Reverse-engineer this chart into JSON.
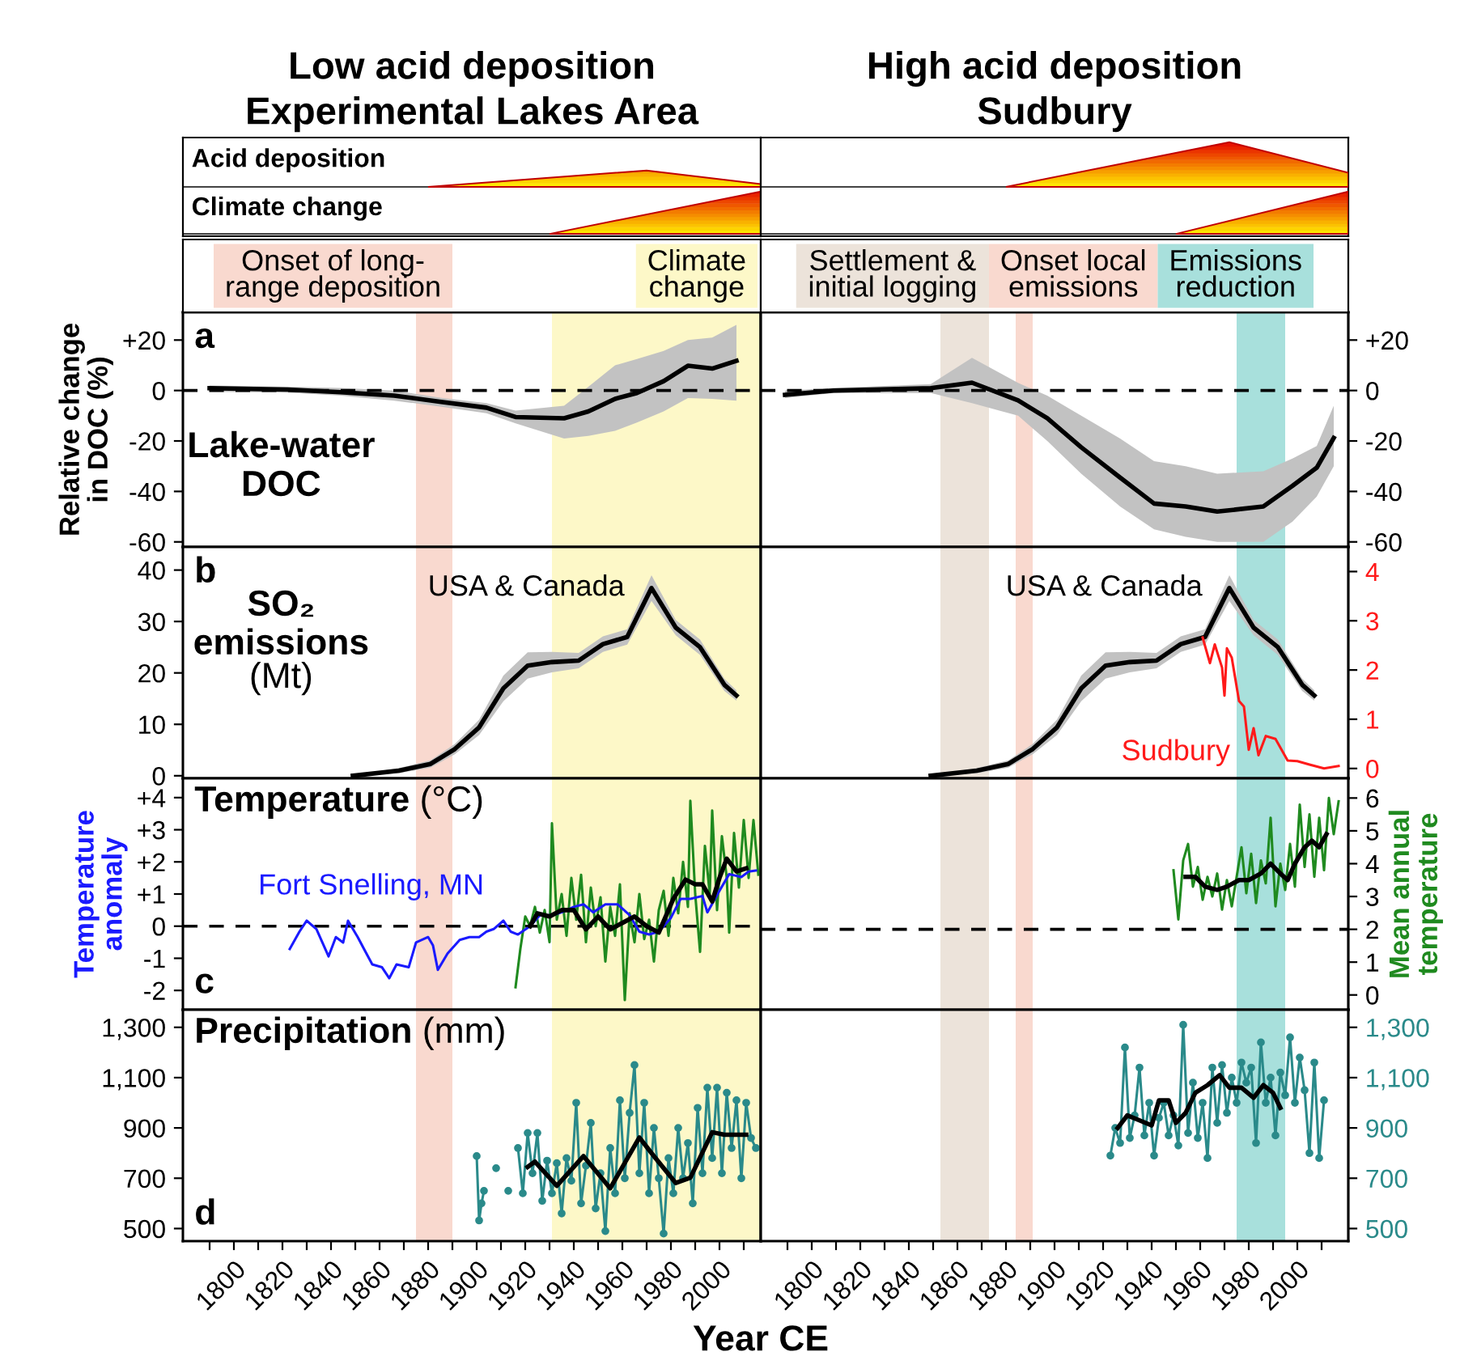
{
  "chart_data": [
    {
      "type": "other",
      "title": "Low acid deposition\nExperimental Lakes Area",
      "annotations": [
        "Acid deposition",
        "Climate change"
      ]
    },
    {
      "type": "other",
      "title": "High acid deposition\nSudbury"
    },
    {
      "type": "line",
      "ylabel": "Relative change\nin DOC (%)",
      "annotations": [
        "a",
        "Lake-water\nDOC"
      ],
      "tick_labels": "y",
      "xlim": [
        1779,
        2017
      ],
      "xticks": [
        {
          "value": 1790,
          "label": null
        },
        1800,
        {
          "value": 1810,
          "label": null
        },
        1820,
        {
          "value": 1830,
          "label": null
        },
        1840,
        {
          "value": 1850,
          "label": null
        },
        1860,
        {
          "value": 1870,
          "label": null
        },
        1880,
        {
          "value": 1890,
          "label": null
        },
        1900,
        {
          "value": 1910,
          "label": null
        },
        1920,
        {
          "value": 1930,
          "label": null
        },
        1940,
        {
          "value": 1950,
          "label": null
        },
        1960,
        {
          "value": 1970,
          "label": null
        },
        1980,
        {
          "value": 1990,
          "label": null
        },
        2000,
        {
          "value": 2010,
          "label": null
        }
      ],
      "ylim": [
        -62,
        31
      ],
      "yticks": [
        {
          "value": 20,
          "label": "+20"
        },
        0,
        -20,
        -40,
        -60
      ],
      "bands": [
        {
          "axis": "x",
          "from": 1875,
          "to": 1890,
          "color": "#f9d9cf",
          "label": "Onset of long-\nrange deposition"
        },
        {
          "axis": "x",
          "from": 1931,
          "to": 2017,
          "color": "#fdf8c8",
          "label": "Climate\nchange"
        }
      ],
      "ref_lines": [
        {
          "axis": "y",
          "value": 0,
          "color": "#000000",
          "line_style": "dashed"
        }
      ],
      "series": [
        {
          "color": "#000000",
          "x": [
            1790,
            1822,
            1844,
            1866,
            1886,
            1904,
            1916,
            1936,
            1946,
            1957,
            1966,
            1977,
            1987,
            1997,
            2007
          ],
          "values": [
            0.9,
            0.4,
            -0.7,
            -2,
            -4.6,
            -6.8,
            -10.5,
            -11,
            -8.3,
            -3.3,
            -1,
            3.7,
            9.8,
            8.7,
            11.8
          ],
          "lower": [
            -0.5,
            -0.8,
            -2,
            -4,
            -6.5,
            -9,
            -13,
            -19,
            -18,
            -16,
            -12.7,
            -8.3,
            -3,
            -3.3,
            -4
          ],
          "upper": [
            2,
            1.5,
            1,
            0,
            -3,
            -5,
            -8,
            -6,
            1.5,
            10,
            12.5,
            15.7,
            20,
            21,
            26
          ]
        }
      ]
    },
    {
      "type": "line",
      "tick_labels": false,
      "xlim": [
        1779,
        2021
      ],
      "xticks": [
        {
          "value": 1790,
          "label": null
        },
        1800,
        {
          "value": 1810,
          "label": null
        },
        1820,
        {
          "value": 1830,
          "label": null
        },
        1840,
        {
          "value": 1850,
          "label": null
        },
        1860,
        {
          "value": 1870,
          "label": null
        },
        1880,
        {
          "value": 1890,
          "label": null
        },
        1900,
        {
          "value": 1910,
          "label": null
        },
        1920,
        {
          "value": 1930,
          "label": null
        },
        1940,
        {
          "value": 1950,
          "label": null
        },
        1960,
        {
          "value": 1970,
          "label": null
        },
        1980,
        {
          "value": 1990,
          "label": null
        },
        2000,
        {
          "value": 2010,
          "label": null
        }
      ],
      "y2lim": [
        -62,
        31
      ],
      "y2ticks": [
        {
          "value": 20,
          "label": "+20"
        },
        {
          "value": 0,
          "label": "0"
        },
        {
          "value": -20,
          "label": "-20"
        },
        {
          "value": -40,
          "label": "-40"
        },
        {
          "value": -60,
          "label": "-60"
        }
      ],
      "bands": [
        {
          "axis": "x",
          "from": 1853,
          "to": 1873,
          "color": "#ece3da",
          "label": "Settlement &\ninitial logging"
        },
        {
          "axis": "x",
          "from": 1884,
          "to": 1891,
          "color": "#f9d9cf",
          "label": "Onset local\nemissions"
        },
        {
          "axis": "x",
          "from": 1975,
          "to": 1995,
          "color": "#a8e0dc",
          "label": "Emissions\nreduction"
        }
      ],
      "ref_lines": [
        {
          "axis": "y2",
          "value": 0,
          "color": "#000000",
          "line_style": "dashed"
        }
      ],
      "series": [
        {
          "color": "#000000",
          "axis": "y2",
          "x": [
            1789,
            1809,
            1849,
            1866,
            1885,
            1897,
            1911,
            1927,
            1941,
            1954,
            1967,
            1986,
            1998,
            2008,
            2015
          ],
          "values": [
            -1.7,
            0,
            0.9,
            3.1,
            -3.9,
            -11,
            -22.5,
            -34.5,
            -44.8,
            -46,
            -48,
            -46,
            -37.8,
            -30.6,
            -18.8
          ],
          "lower": [
            -3,
            -1,
            -1,
            -5,
            -10,
            -20,
            -33,
            -46,
            -55,
            -58,
            -60,
            -60,
            -52,
            -42,
            -30
          ],
          "upper": [
            0,
            1,
            2.5,
            13,
            3,
            -2,
            -10,
            -19,
            -28,
            -30,
            -33,
            -32,
            -27,
            -22,
            -6
          ]
        }
      ]
    },
    {
      "type": "line",
      "annotations": [
        "b",
        "SO₂\nemissions\n(Mt)"
      ],
      "tick_labels": "y",
      "xlim": [
        1779,
        2017
      ],
      "xticks": [
        {
          "value": 1790,
          "label": null
        },
        1800,
        {
          "value": 1810,
          "label": null
        },
        1820,
        {
          "value": 1830,
          "label": null
        },
        1840,
        {
          "value": 1850,
          "label": null
        },
        1860,
        {
          "value": 1870,
          "label": null
        },
        1880,
        {
          "value": 1890,
          "label": null
        },
        1900,
        {
          "value": 1910,
          "label": null
        },
        1920,
        {
          "value": 1930,
          "label": null
        },
        1940,
        {
          "value": 1950,
          "label": null
        },
        1960,
        {
          "value": 1970,
          "label": null
        },
        1980,
        {
          "value": 1990,
          "label": null
        },
        2000,
        {
          "value": 2010,
          "label": null
        }
      ],
      "ylim": [
        -0.5,
        44.5
      ],
      "yticks": [
        0,
        10,
        20,
        30,
        40
      ],
      "bands": [
        {
          "axis": "x",
          "from": 1875,
          "to": 1890,
          "color": "#f9d9cf"
        },
        {
          "axis": "x",
          "from": 1931,
          "to": 2017,
          "color": "#fdf8c8"
        }
      ],
      "series": [
        {
          "name": "USA & Canada",
          "color": "#000000",
          "x": [
            1849,
            1868,
            1881,
            1891,
            1901,
            1911,
            1921,
            1931,
            1942,
            1952,
            1962,
            1972,
            1982,
            1992,
            2002,
            2007
          ],
          "values": [
            0,
            1,
            2.3,
            5.2,
            9.4,
            17,
            21.4,
            22.1,
            22.4,
            25.6,
            27,
            36.5,
            28.8,
            25,
            17.7,
            15.6
          ],
          "lower": [
            0,
            0.5,
            1.6,
            4.2,
            7.9,
            14.5,
            18.9,
            20.1,
            20.9,
            24.1,
            25.5,
            34,
            27.3,
            23.5,
            16.5,
            14.6
          ],
          "upper": [
            0,
            1.5,
            3,
            6.2,
            10.9,
            19.5,
            24,
            24.1,
            23.9,
            27.1,
            28.5,
            39,
            30.3,
            26.5,
            18.9,
            16.6
          ]
        }
      ]
    },
    {
      "type": "line",
      "tick_labels": false,
      "xlim": [
        1779,
        2021
      ],
      "xticks": [
        {
          "value": 1790,
          "label": null
        },
        1800,
        {
          "value": 1810,
          "label": null
        },
        1820,
        {
          "value": 1830,
          "label": null
        },
        1840,
        {
          "value": 1850,
          "label": null
        },
        1860,
        {
          "value": 1870,
          "label": null
        },
        1880,
        {
          "value": 1890,
          "label": null
        },
        1900,
        {
          "value": 1910,
          "label": null
        },
        1920,
        {
          "value": 1930,
          "label": null
        },
        1940,
        {
          "value": 1950,
          "label": null
        },
        1960,
        {
          "value": 1970,
          "label": null
        },
        1980,
        {
          "value": 1990,
          "label": null
        },
        2000,
        {
          "value": 2010,
          "label": null
        }
      ],
      "ylim": [
        -0.5,
        44.5
      ],
      "y2lim": [
        -0.2,
        4.5
      ],
      "y2ticks": [
        {
          "value": 0,
          "label": "0"
        },
        {
          "value": 1,
          "label": "1"
        },
        {
          "value": 2,
          "label": "2"
        },
        {
          "value": 3,
          "label": "3"
        },
        {
          "value": 4,
          "label": "4"
        }
      ],
      "bands": [
        {
          "axis": "x",
          "from": 1853,
          "to": 1873,
          "color": "#ece3da"
        },
        {
          "axis": "x",
          "from": 1884,
          "to": 1891,
          "color": "#f9d9cf"
        },
        {
          "axis": "x",
          "from": 1975,
          "to": 1995,
          "color": "#a8e0dc"
        }
      ],
      "series": [
        {
          "name": "USA & Canada",
          "color": "#000000",
          "x": [
            1849,
            1868,
            1881,
            1891,
            1901,
            1911,
            1921,
            1931,
            1942,
            1952,
            1962,
            1972,
            1982,
            1992,
            2002,
            2007
          ],
          "values": [
            0,
            1,
            2.3,
            5.2,
            9.4,
            17,
            21.4,
            22.1,
            22.4,
            25.6,
            27,
            36.5,
            28.8,
            25,
            17.7,
            15.6
          ],
          "lower": [
            0,
            0.5,
            1.6,
            4.2,
            7.9,
            14.5,
            18.9,
            20.1,
            20.9,
            24.1,
            25.5,
            34,
            27.3,
            23.5,
            16.5,
            14.6
          ],
          "upper": [
            0,
            1.5,
            3,
            6.2,
            10.9,
            19.5,
            24,
            24.1,
            23.9,
            27.1,
            28.5,
            39,
            30.3,
            26.5,
            18.9,
            16.6
          ]
        },
        {
          "name": "Sudbury",
          "color": "#ff1a1a",
          "axis": "y2",
          "x": [
            1961,
            1964,
            1966,
            1969,
            1970,
            1971,
            1973,
            1976,
            1978,
            1980,
            1982,
            1984,
            1987,
            1991,
            1996,
            2000,
            2005,
            2011,
            2017
          ],
          "values": [
            2.66,
            2.14,
            2.52,
            2.05,
            1.48,
            2.44,
            2.25,
            1.37,
            1.26,
            0.38,
            0.82,
            0.27,
            0.66,
            0.6,
            0.16,
            0.15,
            0.08,
            0,
            0.05
          ]
        }
      ]
    },
    {
      "type": "line",
      "ylabel": "Temperature\nanomaly",
      "annotations": [
        "c",
        "Temperature (°C)"
      ],
      "tick_labels": "y",
      "xlim": [
        1779,
        2017
      ],
      "xticks": [
        {
          "value": 1790,
          "label": null
        },
        1800,
        {
          "value": 1810,
          "label": null
        },
        1820,
        {
          "value": 1830,
          "label": null
        },
        1840,
        {
          "value": 1850,
          "label": null
        },
        1860,
        {
          "value": 1870,
          "label": null
        },
        1880,
        {
          "value": 1890,
          "label": null
        },
        1900,
        {
          "value": 1910,
          "label": null
        },
        1920,
        {
          "value": 1930,
          "label": null
        },
        1940,
        {
          "value": 1950,
          "label": null
        },
        1960,
        {
          "value": 1970,
          "label": null
        },
        1980,
        {
          "value": 1990,
          "label": null
        },
        2000,
        {
          "value": 2010,
          "label": null
        }
      ],
      "ylim": [
        -2.6,
        4.6
      ],
      "yticks": [
        {
          "value": 4,
          "label": "+4"
        },
        {
          "value": 3,
          "label": "+3"
        },
        {
          "value": 2,
          "label": "+2"
        },
        {
          "value": 1,
          "label": "+1"
        },
        0,
        -1,
        -2
      ],
      "bands": [
        {
          "axis": "x",
          "from": 1875,
          "to": 1890,
          "color": "#f9d9cf"
        },
        {
          "axis": "x",
          "from": 1931,
          "to": 2017,
          "color": "#fdf8c8"
        }
      ],
      "ref_lines": [
        {
          "axis": "y",
          "value": 0,
          "color": "#000000",
          "line_style": "dashed"
        }
      ],
      "series": [
        {
          "color": "#1f8a1f",
          "x": [
            1916,
            1918,
            1920,
            1922,
            1924,
            1926,
            1928,
            1930,
            1931,
            1933,
            1935,
            1937,
            1939,
            1941,
            1943,
            1945,
            1947,
            1949,
            1951,
            1953,
            1955,
            1957,
            1959,
            1961,
            1963,
            1965,
            1967,
            1969,
            1971,
            1973,
            1975,
            1977,
            1979,
            1981,
            1983,
            1985,
            1987,
            1988,
            1990,
            1992,
            1994,
            1996,
            1997,
            1999,
            2001,
            2003,
            2004,
            2006,
            2008,
            2010,
            2012,
            2014,
            2016
          ],
          "values": [
            -1.9,
            -0.7,
            0.3,
            0,
            0.6,
            -0.2,
            0.5,
            -0.5,
            3.2,
            0.2,
            1,
            -0.3,
            1.5,
            0.2,
            1.6,
            -0.5,
            1.2,
            0,
            0.9,
            -1.1,
            0.6,
            -0.3,
            1.3,
            -2.3,
            0.4,
            -0.5,
            1,
            -0.4,
            0.2,
            -1.1,
            0.5,
            1.1,
            -0.3,
            1.5,
            0.4,
            2,
            0.6,
            3.9,
            1,
            -0.8,
            2.5,
            1,
            3.6,
            0.5,
            2.8,
            1.5,
            -0.2,
            2.9,
            1.2,
            3.3,
            1.5,
            3.3,
            1.6
          ]
        },
        {
          "name": "Fort Snelling, MN",
          "color": "#1a1aff",
          "x": [
            1823,
            1827,
            1830,
            1834,
            1839,
            1842,
            1845,
            1847,
            1851,
            1854,
            1857,
            1861,
            1864,
            1867,
            1872,
            1875,
            1880,
            1882,
            1884,
            1888,
            1893,
            1897,
            1901,
            1904,
            1907,
            1911,
            1914,
            1917,
            1922,
            1926,
            1931,
            1935,
            1940,
            1944,
            1948,
            1953,
            1958,
            1963,
            1967,
            1971,
            1975,
            1980,
            1984,
            1988,
            1993,
            1995,
            2000,
            2004,
            2009,
            2012,
            2015
          ],
          "values": [
            -0.71,
            -0.17,
            0.17,
            -0.09,
            -0.94,
            -0.34,
            -0.51,
            0.17,
            -0.34,
            -0.77,
            -1.19,
            -1.28,
            -1.62,
            -1.19,
            -1.28,
            -0.51,
            -0.34,
            -0.6,
            -1.36,
            -0.85,
            -0.43,
            -0.34,
            -0.34,
            -0.17,
            -0.09,
            0.17,
            -0.17,
            -0.26,
            0,
            0.34,
            0.34,
            0.43,
            0.6,
            0.68,
            0.43,
            0.68,
            0.68,
            0.34,
            -0.17,
            -0.26,
            -0.17,
            0.26,
            0.85,
            0.85,
            0.94,
            0.43,
            1.1,
            1.62,
            1.53,
            1.7,
            1.73
          ]
        },
        {
          "color": "#000000",
          "x": [
            1922,
            1925,
            1930,
            1935,
            1940,
            1945,
            1950,
            1955,
            1960,
            1965,
            1970,
            1975,
            1981,
            1986,
            1990,
            1993,
            1997,
            2000,
            2003,
            2007,
            2011
          ],
          "values": [
            0,
            0.4,
            0.3,
            0.5,
            0.5,
            -0.1,
            0.3,
            -0.1,
            0.1,
            0.3,
            0,
            -0.2,
            0.85,
            1.45,
            1.3,
            1.3,
            0.77,
            1.5,
            2.1,
            1.7,
            1.8
          ]
        }
      ]
    },
    {
      "type": "line",
      "y2label": "Mean annual\ntemperature",
      "tick_labels": false,
      "xlim": [
        1779,
        2021
      ],
      "xticks": [
        {
          "value": 1790,
          "label": null
        },
        1800,
        {
          "value": 1810,
          "label": null
        },
        1820,
        {
          "value": 1830,
          "label": null
        },
        1840,
        {
          "value": 1850,
          "label": null
        },
        1860,
        {
          "value": 1870,
          "label": null
        },
        1880,
        {
          "value": 1890,
          "label": null
        },
        1900,
        {
          "value": 1910,
          "label": null
        },
        1920,
        {
          "value": 1930,
          "label": null
        },
        1940,
        {
          "value": 1950,
          "label": null
        },
        1960,
        {
          "value": 1970,
          "label": null
        },
        1980,
        {
          "value": 1990,
          "label": null
        },
        2000,
        {
          "value": 2010,
          "label": null
        }
      ],
      "y2lim": [
        -0.45,
        6.6
      ],
      "y2ticks": [
        {
          "value": 0,
          "label": "0"
        },
        {
          "value": 1,
          "label": "1"
        },
        {
          "value": 2,
          "label": "2"
        },
        {
          "value": 3,
          "label": "3"
        },
        {
          "value": 4,
          "label": "4"
        },
        {
          "value": 5,
          "label": "5"
        },
        {
          "value": 6,
          "label": "6"
        }
      ],
      "bands": [
        {
          "axis": "x",
          "from": 1853,
          "to": 1873,
          "color": "#ece3da"
        },
        {
          "axis": "x",
          "from": 1884,
          "to": 1891,
          "color": "#f9d9cf"
        },
        {
          "axis": "x",
          "from": 1975,
          "to": 1995,
          "color": "#a8e0dc"
        }
      ],
      "ref_lines": [
        {
          "axis": "y2",
          "value": 2,
          "color": "#000000",
          "line_style": "dashed"
        }
      ],
      "series": [
        {
          "color": "#1f8a1f",
          "axis": "y2",
          "x": [
            1949,
            1951,
            1953,
            1955,
            1957,
            1959,
            1961,
            1963,
            1965,
            1967,
            1969,
            1971,
            1973,
            1975,
            1977,
            1979,
            1981,
            1983,
            1985,
            1987,
            1989,
            1991,
            1993,
            1995,
            1997,
            1999,
            2001,
            2003,
            2005,
            2007,
            2009,
            2011,
            2013,
            2015,
            2017
          ],
          "values": [
            3.8,
            2.3,
            4.1,
            4.6,
            3.3,
            3.9,
            2.9,
            3.6,
            3,
            3.7,
            2.6,
            3.5,
            2.7,
            3.6,
            4.5,
            3.1,
            4.3,
            2.8,
            4.1,
            3.4,
            5.4,
            2.7,
            4,
            3.2,
            4.6,
            3.3,
            5.8,
            3.9,
            5.5,
            3.6,
            5.4,
            3.8,
            6,
            4.9,
            5.9
          ]
        },
        {
          "color": "#000000",
          "axis": "y2",
          "x": [
            1954,
            1958,
            1962,
            1967,
            1971,
            1976,
            1980,
            1985,
            1989,
            1993,
            1996,
            1999,
            2003,
            2006,
            2009,
            2012
          ],
          "values": [
            3.6,
            3.6,
            3.3,
            3.2,
            3.3,
            3.5,
            3.5,
            3.7,
            4,
            3.7,
            3.5,
            4,
            4.5,
            4.7,
            4.5,
            4.9
          ]
        }
      ]
    },
    {
      "type": "line",
      "xlabel": "Year CE",
      "annotations": [
        "d",
        "Precipitation (mm)"
      ],
      "xlim": [
        1779,
        2017
      ],
      "xticks": [
        {
          "value": 1790,
          "label": null
        },
        1800,
        {
          "value": 1810,
          "label": null
        },
        1820,
        {
          "value": 1830,
          "label": null
        },
        1840,
        {
          "value": 1850,
          "label": null
        },
        1860,
        {
          "value": 1870,
          "label": null
        },
        1880,
        {
          "value": 1890,
          "label": null
        },
        1900,
        {
          "value": 1910,
          "label": null
        },
        1920,
        {
          "value": 1930,
          "label": null
        },
        1940,
        {
          "value": 1950,
          "label": null
        },
        1960,
        {
          "value": 1970,
          "label": null
        },
        1980,
        {
          "value": 1990,
          "label": null
        },
        2000,
        {
          "value": 2010,
          "label": null
        }
      ],
      "ylim": [
        450,
        1370
      ],
      "yticks": [
        {
          "value": 1300,
          "label": "1,300"
        },
        {
          "value": 1100,
          "label": "1,100"
        },
        900,
        700,
        500
      ],
      "bands": [
        {
          "axis": "x",
          "from": 1875,
          "to": 1890,
          "color": "#f9d9cf"
        },
        {
          "axis": "x",
          "from": 1931,
          "to": 2017,
          "color": "#fdf8c8"
        }
      ],
      "series": [
        {
          "color": "#2a8a8a",
          "marker": "circle",
          "x": [
            1900,
            1901,
            1902,
            1903,
            1905,
            1908,
            1910,
            1913,
            1915,
            1917,
            1919,
            1921,
            1923,
            1925,
            1927,
            1929,
            1931,
            1933,
            1935,
            1937,
            1939,
            1941,
            1943,
            1945,
            1947,
            1949,
            1951,
            1953,
            1955,
            1957,
            1959,
            1961,
            1963,
            1965,
            1967,
            1969,
            1971,
            1973,
            1975,
            1977,
            1979,
            1981,
            1983,
            1985,
            1987,
            1989,
            1991,
            1993,
            1995,
            1997,
            1999,
            2001,
            2003,
            2005,
            2007,
            2009,
            2011,
            2013,
            2015
          ],
          "values": [
            788,
            532,
            600,
            650,
            null,
            740,
            null,
            650,
            null,
            820,
            640,
            880,
            720,
            880,
            610,
            770,
            640,
            760,
            560,
            780,
            690,
            1000,
            600,
            750,
            920,
            580,
            720,
            490,
            820,
            640,
            1010,
            700,
            960,
            1150,
            720,
            1000,
            640,
            900,
            700,
            480,
            780,
            640,
            900,
            700,
            840,
            600,
            980,
            720,
            1060,
            780,
            1060,
            720,
            1040,
            820,
            1010,
            700,
            1000,
            860,
            820
          ]
        },
        {
          "color": "#000000",
          "x": [
            1921,
            1924,
            1933,
            1944,
            1955,
            1967,
            1973,
            1982,
            1988,
            1997,
            2002,
            2011
          ],
          "values": [
            745,
            766,
            670,
            788,
            660,
            862,
            788,
            681,
            702,
            883,
            873,
            873
          ]
        }
      ]
    },
    {
      "type": "line",
      "tick_labels": "x",
      "xlim": [
        1779,
        2021
      ],
      "xticks": [
        {
          "value": 1790,
          "label": null
        },
        1800,
        {
          "value": 1810,
          "label": null
        },
        1820,
        {
          "value": 1830,
          "label": null
        },
        1840,
        {
          "value": 1850,
          "label": null
        },
        1860,
        {
          "value": 1870,
          "label": null
        },
        1880,
        {
          "value": 1890,
          "label": null
        },
        1900,
        {
          "value": 1910,
          "label": null
        },
        1920,
        {
          "value": 1930,
          "label": null
        },
        1940,
        {
          "value": 1950,
          "label": null
        },
        1960,
        {
          "value": 1970,
          "label": null
        },
        1980,
        {
          "value": 1990,
          "label": null
        },
        2000,
        {
          "value": 2010,
          "label": null
        }
      ],
      "y2lim": [
        450,
        1370
      ],
      "y2ticks": [
        {
          "value": 1300,
          "label": "1,300"
        },
        {
          "value": 1100,
          "label": "1,100"
        },
        {
          "value": 900,
          "label": "900"
        },
        {
          "value": 700,
          "label": "700"
        },
        {
          "value": 500,
          "label": "500"
        }
      ],
      "bands": [
        {
          "axis": "x",
          "from": 1853,
          "to": 1873,
          "color": "#ece3da"
        },
        {
          "axis": "x",
          "from": 1884,
          "to": 1891,
          "color": "#f9d9cf"
        },
        {
          "axis": "x",
          "from": 1975,
          "to": 1995,
          "color": "#a8e0dc"
        }
      ],
      "series": [
        {
          "color": "#2a8a8a",
          "marker": "circle",
          "axis": "y2",
          "x": [
            1923,
            1925,
            1927,
            1929,
            1931,
            1933,
            1935,
            1937,
            1939,
            1941,
            1943,
            1945,
            1947,
            1949,
            1951,
            1953,
            1955,
            1957,
            1959,
            1961,
            1963,
            1965,
            1967,
            1969,
            1971,
            1973,
            1975,
            1977,
            1979,
            1981,
            1983,
            1985,
            1987,
            1989,
            1991,
            1993,
            1995,
            1997,
            1999,
            2001,
            2003,
            2005,
            2007,
            2009,
            2011
          ],
          "values": [
            790,
            900,
            840,
            1220,
            860,
            950,
            1140,
            870,
            1000,
            790,
            940,
            1000,
            870,
            950,
            830,
            1310,
            880,
            1080,
            860,
            1000,
            780,
            1140,
            920,
            1150,
            960,
            1100,
            1000,
            1160,
            1080,
            1140,
            840,
            1240,
            1000,
            1100,
            870,
            1120,
            1030,
            1260,
            1000,
            1180,
            1050,
            800,
            1160,
            780,
            1010
          ]
        },
        {
          "color": "#000000",
          "axis": "y2",
          "x": [
            1926,
            1930,
            1935,
            1940,
            1943,
            1947,
            1950,
            1954,
            1958,
            1963,
            1968,
            1972,
            1977,
            1982,
            1986,
            1990,
            1993
          ],
          "values": [
            900,
            950,
            930,
            910,
            1010,
            1010,
            920,
            960,
            1040,
            1070,
            1110,
            1060,
            1060,
            1020,
            1070,
            1040,
            980
          ]
        }
      ]
    }
  ]
}
